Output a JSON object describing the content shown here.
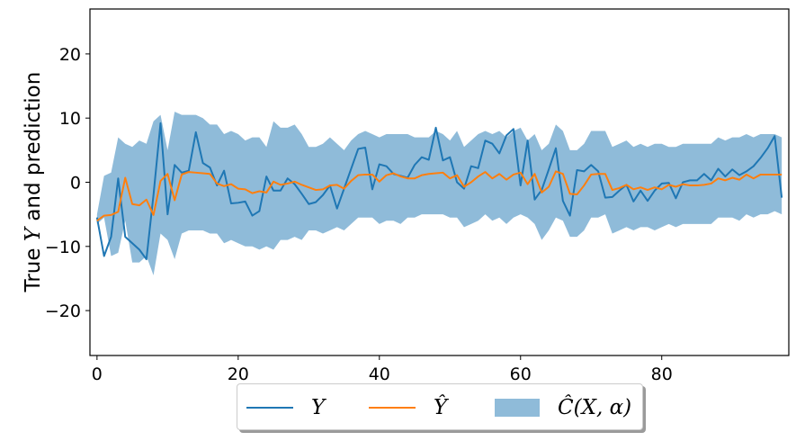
{
  "chart_data": {
    "type": "line",
    "title": "",
    "xlabel": "",
    "ylabel_prefix": "True ",
    "ylabel_var": "Y",
    "ylabel_suffix": " and prediction",
    "xlim": [
      -1,
      98
    ],
    "ylim": [
      -27,
      27
    ],
    "xticks": [
      0,
      20,
      40,
      60,
      80
    ],
    "yticks": [
      -20,
      -10,
      0,
      10,
      20
    ],
    "xtick_labels": [
      "0",
      "20",
      "40",
      "60",
      "80"
    ],
    "ytick_labels": [
      "−20",
      "−10",
      "0",
      "10",
      "20"
    ],
    "grid": false,
    "legend_placement": "below",
    "x": [
      0,
      1,
      2,
      3,
      4,
      5,
      6,
      7,
      8,
      9,
      10,
      11,
      12,
      13,
      14,
      15,
      16,
      17,
      18,
      19,
      20,
      21,
      22,
      23,
      24,
      25,
      26,
      27,
      28,
      29,
      30,
      31,
      32,
      33,
      34,
      35,
      36,
      37,
      38,
      39,
      40,
      41,
      42,
      43,
      44,
      45,
      46,
      47,
      48,
      49,
      50,
      51,
      52,
      53,
      54,
      55,
      56,
      57,
      58,
      59,
      60,
      61,
      62,
      63,
      64,
      65,
      66,
      67,
      68,
      69,
      70,
      71,
      72,
      73,
      74,
      75,
      76,
      77,
      78,
      79,
      80,
      81,
      82,
      83,
      84,
      85,
      86,
      87,
      88,
      89,
      90,
      91,
      92,
      93,
      94,
      95,
      96,
      97
    ],
    "series": [
      {
        "name": "Y",
        "color": "#1f77b4",
        "values": [
          -5.5,
          -11.5,
          -8.5,
          0.6,
          -8.5,
          -9.5,
          -10.5,
          -12,
          -2,
          9.2,
          -5,
          2.7,
          1.5,
          1.8,
          7.8,
          3,
          2.3,
          -0.5,
          1.8,
          -3.3,
          -3.2,
          -3,
          -5.2,
          -4.5,
          0.9,
          -1.3,
          -1.3,
          0.6,
          -0.3,
          -1.8,
          -3.4,
          -3.1,
          -2,
          -0.5,
          -4.1,
          -1,
          2.1,
          5.2,
          5.4,
          -1.1,
          2.8,
          2.5,
          1.3,
          1,
          0.7,
          2.7,
          3.9,
          3.5,
          8.5,
          3.4,
          3.9,
          0,
          -1,
          2.5,
          2.2,
          6.5,
          6,
          4.5,
          7.3,
          8.3,
          -0.5,
          6.5,
          -2.7,
          -1.2,
          2,
          5.3,
          -2.9,
          -5.2,
          1.9,
          1.7,
          2.7,
          1.7,
          -2.4,
          -2.3,
          -1.3,
          -0.4,
          -3,
          -1.3,
          -2.9,
          -1.3,
          -0.2,
          -0.1,
          -2.5,
          0,
          0.3,
          0.3,
          1.3,
          0.3,
          2.1,
          0.9,
          2,
          1.1,
          1.7,
          2.5,
          3.8,
          5.3,
          7.2,
          -2.4
        ]
      },
      {
        "name": "Ŷ",
        "color": "#ff7f0e",
        "values": [
          -6,
          -5.2,
          -5.1,
          -4.6,
          0.7,
          -3.4,
          -3.6,
          -2.7,
          -5.1,
          0.2,
          1.3,
          -2.8,
          1.2,
          1.6,
          1.5,
          1.4,
          1.3,
          -0.2,
          -0.6,
          -0.3,
          -1,
          -1.1,
          -1.7,
          -1.4,
          -1.6,
          0.1,
          -0.4,
          -0.2,
          0.1,
          -0.4,
          -0.8,
          -1.2,
          -1.1,
          -0.5,
          -0.4,
          -1,
          0.2,
          1.1,
          1.2,
          1.2,
          0.1,
          1.1,
          1.4,
          0.9,
          0.6,
          0.6,
          1.1,
          1.3,
          1.4,
          1.5,
          0.6,
          1.1,
          -0.7,
          0,
          0.9,
          1.6,
          0.6,
          1.3,
          0.4,
          1.2,
          1.5,
          -0.3,
          1.3,
          -1.6,
          -0.7,
          1.7,
          1.3,
          -1.8,
          -1.9,
          -0.5,
          1.2,
          1.3,
          1.3,
          -1.2,
          -0.9,
          -0.4,
          -1.1,
          -0.8,
          -1.2,
          -0.8,
          -1.1,
          -0.4,
          -0.7,
          -0.3,
          -0.5,
          -0.5,
          -0.4,
          -0.2,
          0.6,
          0.3,
          0.7,
          0.4,
          1.2,
          0.6,
          1.2,
          1.2,
          1.2,
          1.2
        ]
      },
      {
        "name": "Ĉ(X, α)",
        "color": "#1f77b4",
        "type": "band",
        "lower": [
          -6.5,
          -5.5,
          -11.5,
          -11,
          -6,
          -12.5,
          -12.5,
          -11.5,
          -14.5,
          -8,
          -9,
          -12,
          -8,
          -7.5,
          -7.5,
          -7.5,
          -8,
          -8,
          -9.5,
          -9,
          -9.5,
          -10,
          -10,
          -10.5,
          -10,
          -10.5,
          -9,
          -9,
          -8.5,
          -9,
          -7.5,
          -7.5,
          -8,
          -7.5,
          -7,
          -7.5,
          -6.5,
          -5.5,
          -5.5,
          -5.5,
          -6.5,
          -6,
          -6,
          -6.5,
          -5.5,
          -5.5,
          -5,
          -5,
          -5,
          -5,
          -5.5,
          -5.5,
          -7,
          -6.5,
          -6,
          -5,
          -6,
          -5.5,
          -6.5,
          -5.5,
          -5,
          -5.5,
          -6.5,
          -9,
          -7.5,
          -5.5,
          -6,
          -8.5,
          -8.5,
          -7.5,
          -5.5,
          -5.5,
          -5,
          -8,
          -7.5,
          -7,
          -7.5,
          -7,
          -7,
          -7.5,
          -7,
          -6.5,
          -7,
          -6.5,
          -6.5,
          -6.5,
          -6.5,
          -6.5,
          -5.5,
          -5.5,
          -5.5,
          -6,
          -5,
          -5.5,
          -5,
          -5,
          -4.5,
          -5
        ],
        "upper": [
          -5,
          1,
          1.5,
          7,
          6,
          5.5,
          6.5,
          6,
          9.5,
          10.5,
          5,
          11,
          10.5,
          10.5,
          10.5,
          10,
          9,
          9,
          7.5,
          8,
          7.5,
          6.5,
          7,
          7,
          5.5,
          9.5,
          8.5,
          8.5,
          9,
          7.5,
          5.5,
          5.5,
          6,
          7,
          6,
          5,
          6.5,
          7.5,
          8,
          7.5,
          7,
          7.5,
          7.5,
          7.5,
          7.5,
          7,
          7,
          7,
          8,
          7.5,
          6.5,
          8,
          5.5,
          6.5,
          7.5,
          8,
          7.5,
          8,
          7,
          8,
          8.5,
          6.5,
          7.5,
          5,
          6,
          9,
          8,
          5,
          5,
          6,
          8,
          8,
          8,
          5.5,
          6,
          6.5,
          5.5,
          6,
          5.5,
          6,
          6,
          5.5,
          5.5,
          6,
          6,
          6,
          6,
          6,
          7,
          6.5,
          7,
          7,
          7.5,
          7,
          7.5,
          7.5,
          7.5,
          7
        ]
      }
    ],
    "legend": {
      "entries": [
        {
          "label": "Y",
          "color": "#1f77b4",
          "kind": "line"
        },
        {
          "label": "Ŷ",
          "color": "#ff7f0e",
          "kind": "line"
        },
        {
          "label": "Ĉ(X, α)",
          "color": "#1f77b4",
          "kind": "patch"
        }
      ]
    }
  }
}
